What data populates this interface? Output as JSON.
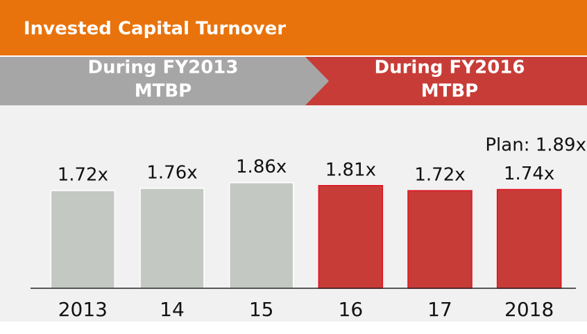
{
  "chart_data": {
    "type": "bar",
    "title": "Invested Capital Turnover",
    "periods": [
      [
        "During FY2013",
        "MTBP"
      ],
      [
        "During FY2016",
        "MTBP"
      ]
    ],
    "annotation": "Plan: 1.89x",
    "categories": [
      "2013",
      "14",
      "15",
      "16",
      "17",
      "2018"
    ],
    "values": [
      1.72,
      1.76,
      1.86,
      1.81,
      1.72,
      1.74
    ],
    "value_labels": [
      "1.72x",
      "1.76x",
      "1.86x",
      "1.81x",
      "1.72x",
      "1.74x"
    ],
    "colors": [
      "#c3c8c2",
      "#c3c8c2",
      "#c3c8c2",
      "#c83c37",
      "#c83c37",
      "#c83c37"
    ],
    "ylim": [
      0,
      2.1
    ]
  }
}
